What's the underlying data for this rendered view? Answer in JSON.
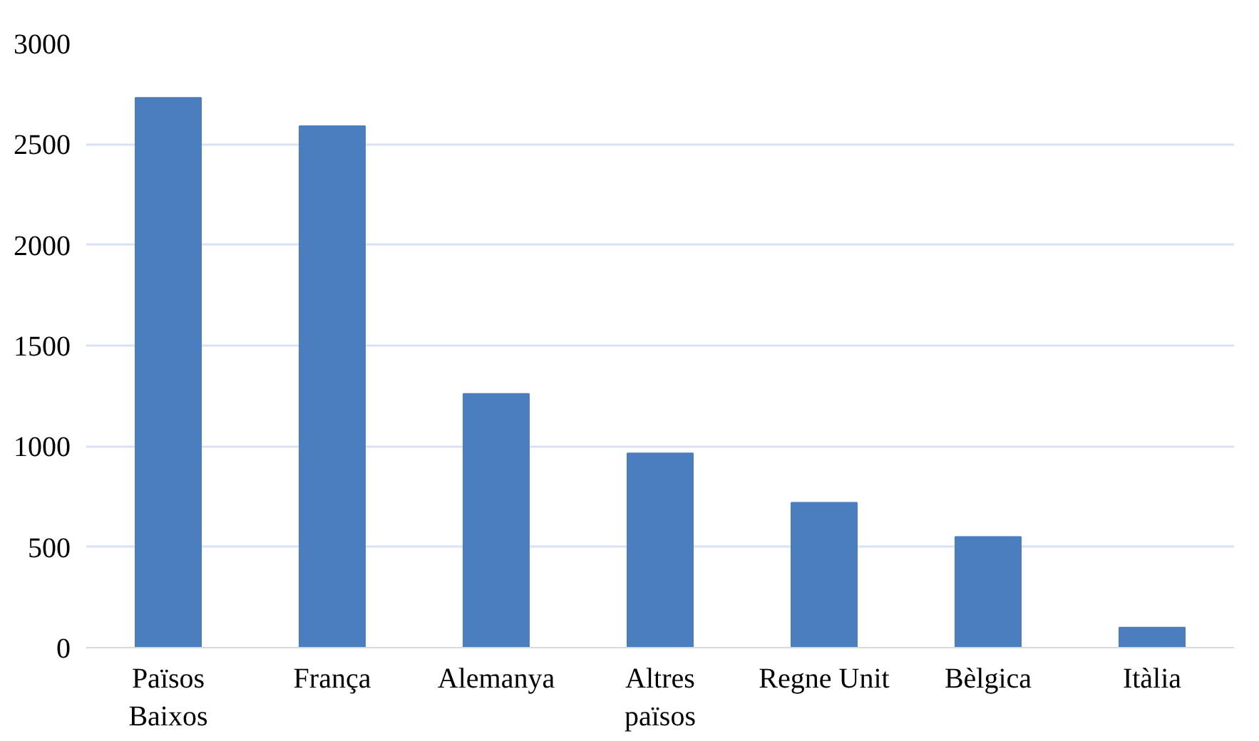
{
  "chart_data": {
    "type": "bar",
    "categories": [
      "Països Baixos",
      "França",
      "Alemanya",
      "Altres països",
      "Regne Unit",
      "Bèlgica",
      "Itàlia"
    ],
    "values": [
      2730,
      2590,
      1260,
      965,
      720,
      550,
      100
    ],
    "color": "#4a7ebf",
    "ylim": [
      0,
      3000
    ],
    "yticks": [
      0,
      500,
      1000,
      1500,
      2000,
      2500,
      3000
    ],
    "grid": "y"
  }
}
